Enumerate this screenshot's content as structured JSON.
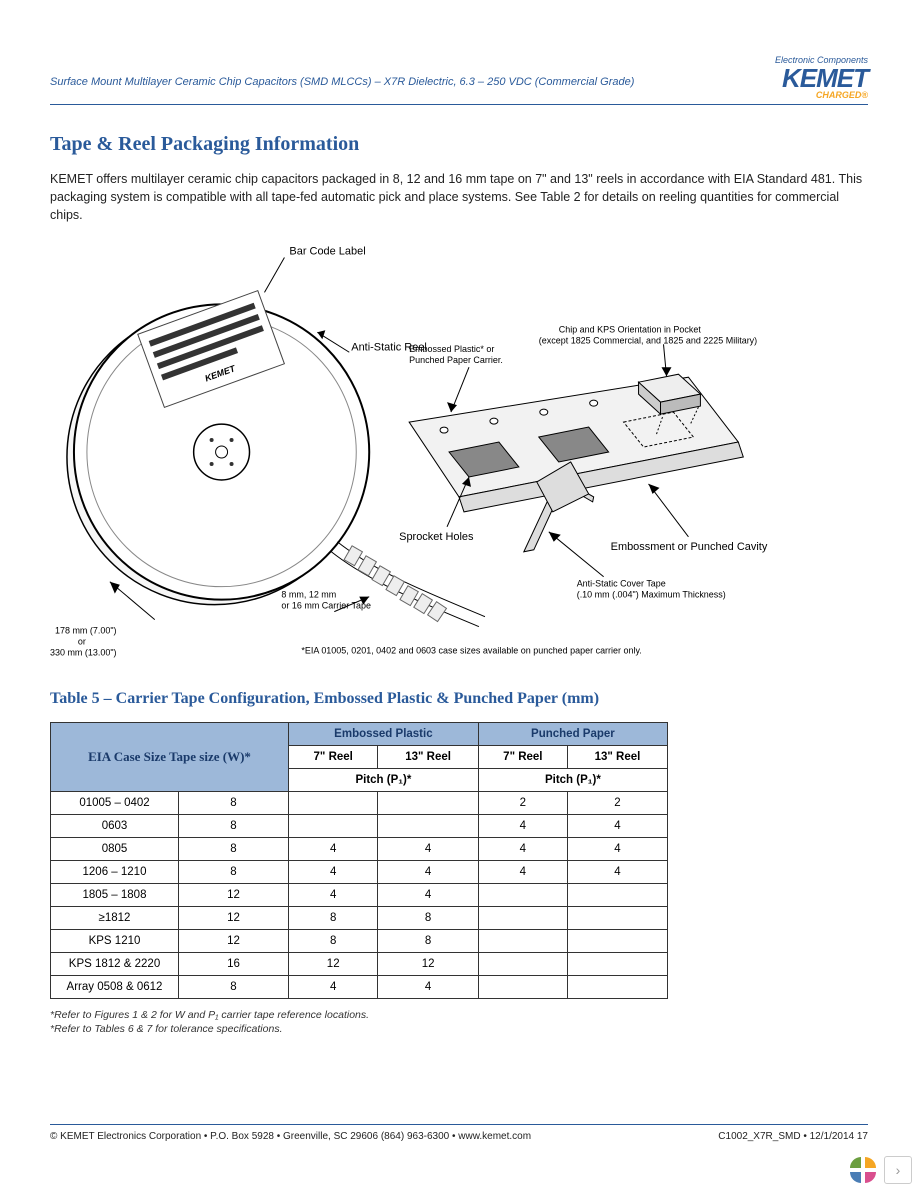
{
  "header": {
    "subtitle": "Surface Mount Multilayer Ceramic Chip Capacitors (SMD MLCCs) – X7R Dielectric, 6.3 – 250 VDC (Commercial Grade)",
    "logo": {
      "ec": "Electronic Components",
      "brand": "KEMET",
      "charged": "CHARGED®"
    }
  },
  "section": {
    "title": "Tape & Reel Packaging Information",
    "body": "KEMET offers multilayer ceramic chip capacitors packaged in 8, 12 and 16 mm tape on 7\" and 13\" reels in accordance with EIA Standard 481. This packaging system is compatible with all tape-fed automatic pick and place systems. See Table 2 for details on reeling quantities for commercial chips."
  },
  "diagram": {
    "labels": {
      "barcode": "Bar Code Label",
      "antistatic_reel": "Anti-Static Reel",
      "carrier": "Embossed Plastic* or\nPunched Paper Carrier.",
      "chip_orient": "Chip and KPS Orientation in Pocket\n(except 1825 Commercial, and 1825 and 2225 Military)",
      "sprocket": "Sprocket Holes",
      "tape_size": "8 mm, 12 mm\nor 16 mm Carrier Tape",
      "cover_tape": "Anti-Static Cover Tape\n(.10 mm (.004\") Maximum Thickness)",
      "emboss_cavity": "Embossment or Punched Cavity",
      "reel_dim": "178 mm (7.00\")\nor\n330 mm (13.00\")",
      "eia_note": "*EIA 01005, 0201, 0402 and 0603 case sizes available on punched paper carrier only."
    }
  },
  "table5": {
    "title": "Table 5 – Carrier Tape Configuration, Embossed Plastic & Punched Paper (mm)",
    "headers": {
      "case_tape": "EIA Case Size Tape size (W)*",
      "embossed": "Embossed Plastic",
      "punched": "Punched Paper",
      "reel7": "7\" Reel",
      "reel13": "13\" Reel",
      "pitch": "Pitch (P₁)*"
    },
    "rows": [
      {
        "case": "01005 – 0402",
        "tape": "8",
        "e7": "",
        "e13": "",
        "p7": "2",
        "p13": "2"
      },
      {
        "case": "0603",
        "tape": "8",
        "e7": "",
        "e13": "",
        "p7": "4",
        "p13": "4"
      },
      {
        "case": "0805",
        "tape": "8",
        "e7": "4",
        "e13": "4",
        "p7": "4",
        "p13": "4"
      },
      {
        "case": "1206 – 1210",
        "tape": "8",
        "e7": "4",
        "e13": "4",
        "p7": "4",
        "p13": "4"
      },
      {
        "case": "1805 – 1808",
        "tape": "12",
        "e7": "4",
        "e13": "4",
        "p7": "",
        "p13": ""
      },
      {
        "case": "≥1812",
        "tape": "12",
        "e7": "8",
        "e13": "8",
        "p7": "",
        "p13": ""
      },
      {
        "case": "KPS 1210",
        "tape": "12",
        "e7": "8",
        "e13": "8",
        "p7": "",
        "p13": ""
      },
      {
        "case": "KPS 1812 & 2220",
        "tape": "16",
        "e7": "12",
        "e13": "12",
        "p7": "",
        "p13": ""
      },
      {
        "case": "Array 0508 & 0612",
        "tape": "8",
        "e7": "4",
        "e13": "4",
        "p7": "",
        "p13": ""
      }
    ],
    "footnotes": [
      "*Refer to Figures 1 & 2 for W and P₁ carrier tape reference locations.",
      "*Refer to Tables 6 & 7 for tolerance specifications."
    ]
  },
  "footer": {
    "left": "© KEMET Electronics Corporation • P.O. Box 5928 • Greenville, SC 29606 (864) 963-6300 • www.kemet.com",
    "right": "C1002_X7R_SMD • 12/1/2014  17"
  },
  "colors": {
    "blue": "#2a5a9a",
    "header_bg": "#9db8d9",
    "orange": "#f5a623"
  }
}
